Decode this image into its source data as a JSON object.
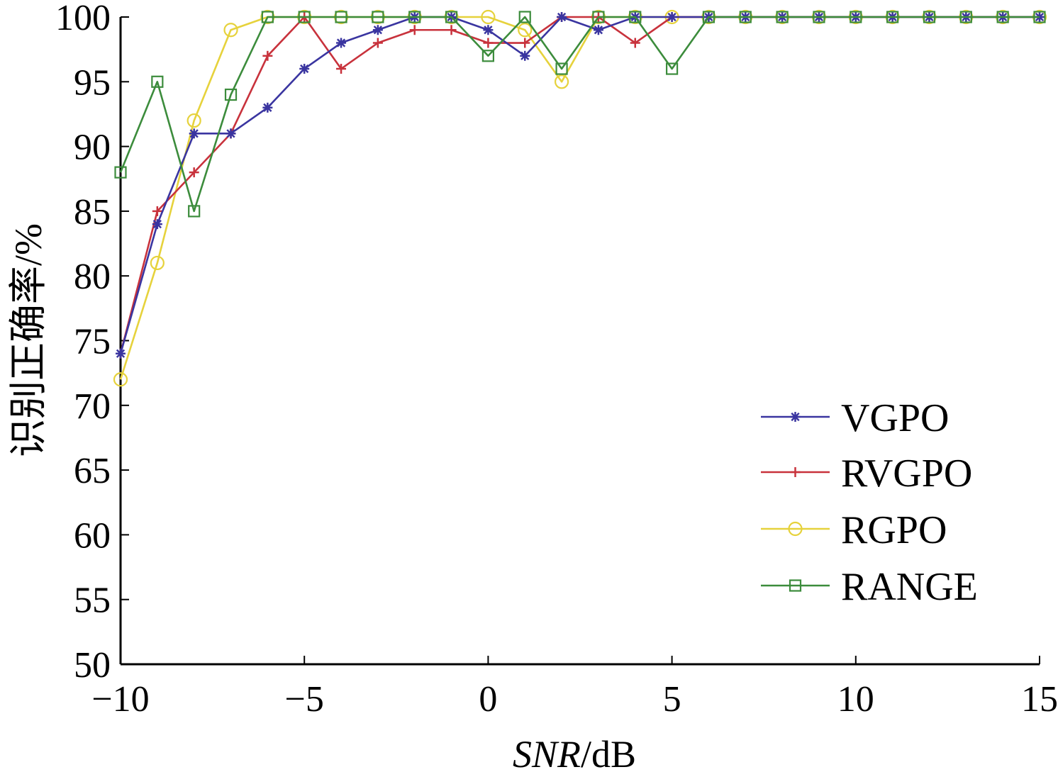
{
  "chart_data": {
    "type": "line",
    "title": "",
    "xlabel": "SNR/dB",
    "xlabel_italic_part": "SNR",
    "xlabel_unit_part": "/dB",
    "ylabel": "识别正确率/%",
    "xlim": [
      -10,
      15
    ],
    "ylim": [
      50,
      100
    ],
    "xticks": [
      -10,
      -5,
      0,
      5,
      10,
      15
    ],
    "xtick_labels": [
      "−10",
      "−5",
      "0",
      "5",
      "10",
      "15"
    ],
    "yticks": [
      50,
      55,
      60,
      65,
      70,
      75,
      80,
      85,
      90,
      95,
      100
    ],
    "grid": false,
    "legend_position": "lower-right",
    "x": [
      -10,
      -9,
      -8,
      -7,
      -6,
      -5,
      -4,
      -3,
      -2,
      -1,
      0,
      1,
      2,
      3,
      4,
      5,
      6,
      7,
      8,
      9,
      10,
      11,
      12,
      13,
      14,
      15
    ],
    "series": [
      {
        "name": "VGPO",
        "color": "#3a35a0",
        "marker": "asterisk",
        "values": [
          74,
          84,
          91,
          91,
          93,
          96,
          98,
          99,
          100,
          100,
          99,
          97,
          100,
          99,
          100,
          100,
          100,
          100,
          100,
          100,
          100,
          100,
          100,
          100,
          100,
          100
        ]
      },
      {
        "name": "RVGPO",
        "color": "#c8323c",
        "marker": "plus",
        "values": [
          74,
          85,
          88,
          91,
          97,
          100,
          96,
          98,
          99,
          99,
          98,
          98,
          100,
          100,
          98,
          100,
          100,
          100,
          100,
          100,
          100,
          100,
          100,
          100,
          100,
          100
        ]
      },
      {
        "name": "RGPO",
        "color": "#e6d23c",
        "marker": "circle",
        "values": [
          72,
          81,
          92,
          99,
          100,
          100,
          100,
          100,
          100,
          100,
          100,
          99,
          95,
          100,
          100,
          100,
          100,
          100,
          100,
          100,
          100,
          100,
          100,
          100,
          100,
          100
        ]
      },
      {
        "name": "RANGE",
        "color": "#3c8c3c",
        "marker": "square",
        "values": [
          88,
          95,
          85,
          94,
          100,
          100,
          100,
          100,
          100,
          100,
          97,
          100,
          96,
          100,
          100,
          96,
          100,
          100,
          100,
          100,
          100,
          100,
          100,
          100,
          100,
          100
        ]
      }
    ]
  }
}
